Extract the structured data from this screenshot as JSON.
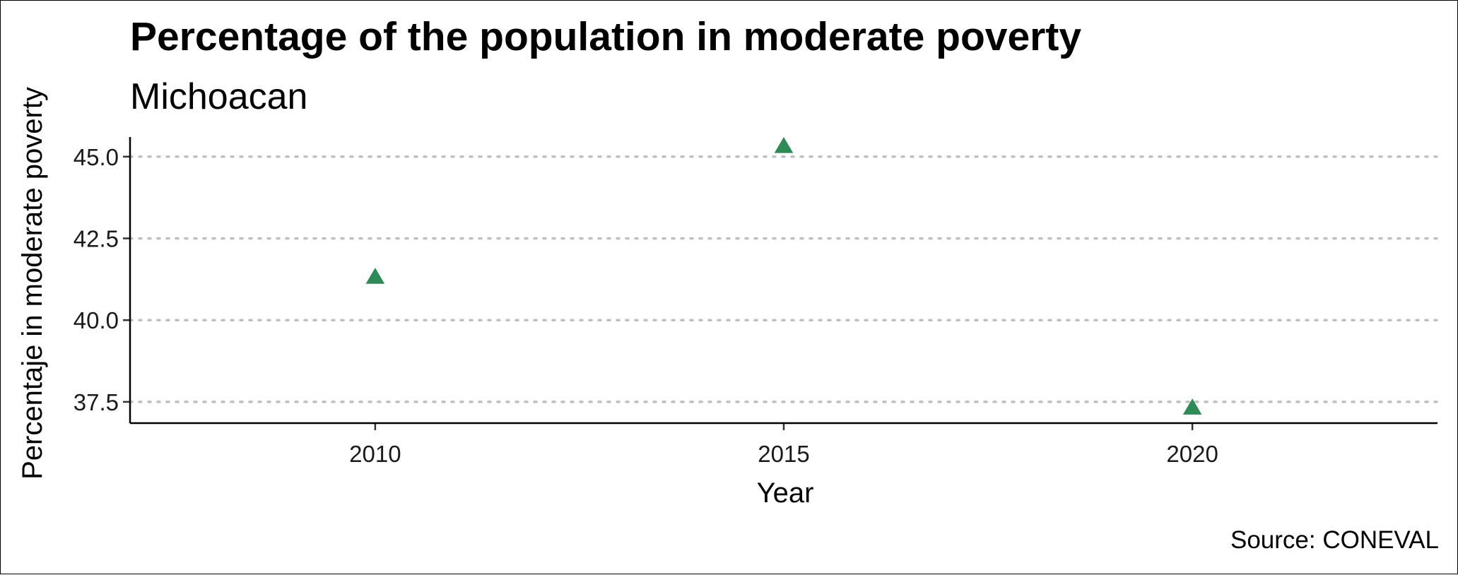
{
  "chart_data": {
    "type": "scatter",
    "title": "Percentage of the population in moderate poverty",
    "subtitle": "Michoacan",
    "xlabel": "Year",
    "ylabel": "Percentaje in moderate poverty",
    "caption": "Source: CONEVAL",
    "x": [
      2010,
      2015,
      2020
    ],
    "y": [
      41.3,
      45.3,
      37.3
    ],
    "xlim": [
      2007,
      2023
    ],
    "ylim": [
      36.85,
      45.6
    ],
    "x_ticks": [
      2010,
      2015,
      2020
    ],
    "x_tick_labels": [
      "2010",
      "2015",
      "2020"
    ],
    "y_ticks": [
      37.5,
      40.0,
      42.5,
      45.0
    ],
    "y_tick_labels": [
      "37.5",
      "40.0",
      "42.5",
      "45.0"
    ],
    "grid": "horizontal dotted",
    "marker": "triangle",
    "marker_color": "#2E8B57",
    "grid_color": "#bfbfbf"
  }
}
